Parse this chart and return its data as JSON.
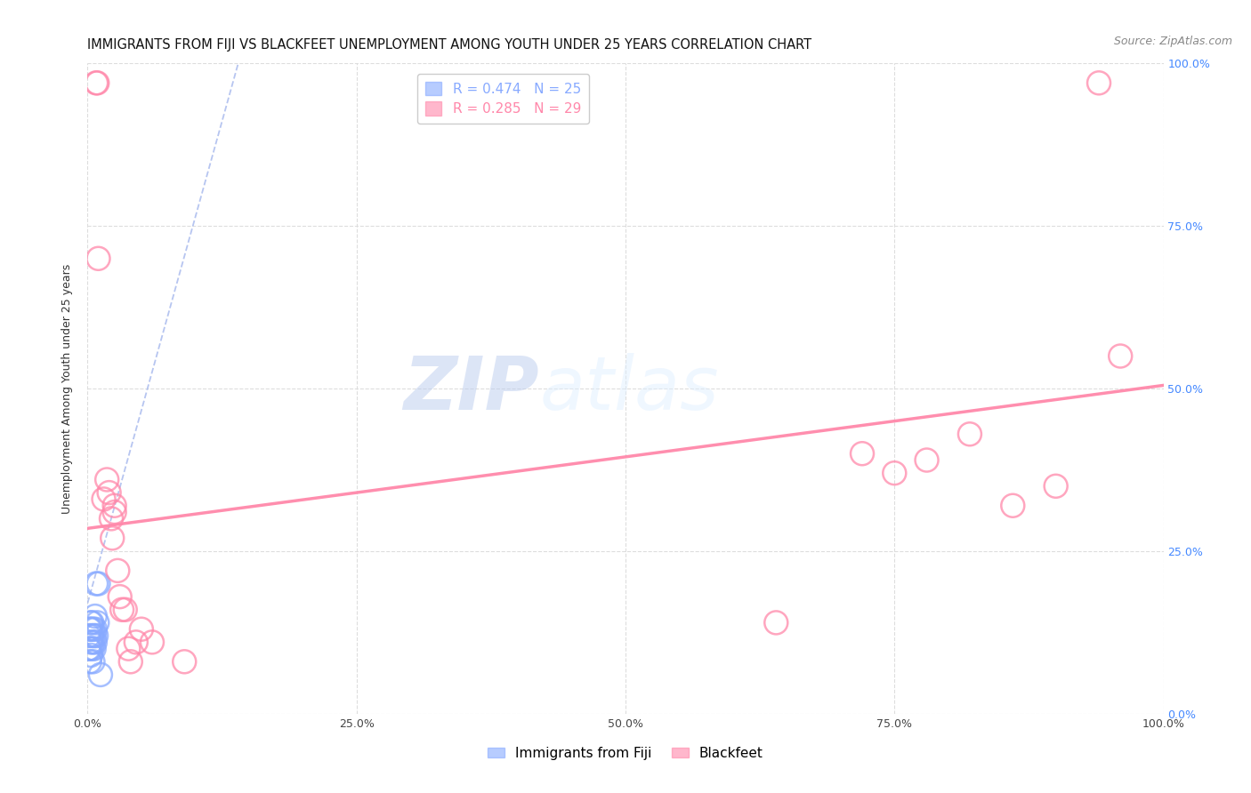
{
  "title": "IMMIGRANTS FROM FIJI VS BLACKFEET UNEMPLOYMENT AMONG YOUTH UNDER 25 YEARS CORRELATION CHART",
  "source": "Source: ZipAtlas.com",
  "ylabel": "Unemployment Among Youth under 25 years",
  "xlim": [
    0,
    1.0
  ],
  "ylim": [
    0,
    1.0
  ],
  "xtick_vals": [
    0,
    0.25,
    0.5,
    0.75,
    1.0
  ],
  "ytick_vals": [
    0,
    0.25,
    0.5,
    0.75,
    1.0
  ],
  "grid_color": "#dddddd",
  "fiji_color": "#88aaff",
  "blackfeet_color": "#ff88aa",
  "fiji_R": 0.474,
  "fiji_N": 25,
  "blackfeet_R": 0.285,
  "blackfeet_N": 29,
  "fiji_legend_label": "Immigrants from Fiji",
  "blackfeet_legend_label": "Blackfeet",
  "watermark_zip": "ZIP",
  "watermark_atlas": "atlas",
  "fiji_points": [
    [
      0.001,
      0.1
    ],
    [
      0.001,
      0.12
    ],
    [
      0.002,
      0.08
    ],
    [
      0.002,
      0.1
    ],
    [
      0.002,
      0.13
    ],
    [
      0.003,
      0.09
    ],
    [
      0.003,
      0.11
    ],
    [
      0.003,
      0.13
    ],
    [
      0.003,
      0.14
    ],
    [
      0.004,
      0.1
    ],
    [
      0.004,
      0.12
    ],
    [
      0.004,
      0.14
    ],
    [
      0.005,
      0.08
    ],
    [
      0.005,
      0.11
    ],
    [
      0.005,
      0.13
    ],
    [
      0.006,
      0.1
    ],
    [
      0.006,
      0.12
    ],
    [
      0.007,
      0.11
    ],
    [
      0.007,
      0.13
    ],
    [
      0.007,
      0.15
    ],
    [
      0.008,
      0.12
    ],
    [
      0.008,
      0.2
    ],
    [
      0.009,
      0.14
    ],
    [
      0.01,
      0.2
    ],
    [
      0.012,
      0.06
    ]
  ],
  "blackfeet_points": [
    [
      0.008,
      0.97
    ],
    [
      0.009,
      0.97
    ],
    [
      0.01,
      0.7
    ],
    [
      0.015,
      0.33
    ],
    [
      0.018,
      0.36
    ],
    [
      0.02,
      0.34
    ],
    [
      0.022,
      0.3
    ],
    [
      0.023,
      0.27
    ],
    [
      0.025,
      0.31
    ],
    [
      0.025,
      0.32
    ],
    [
      0.028,
      0.22
    ],
    [
      0.03,
      0.18
    ],
    [
      0.032,
      0.16
    ],
    [
      0.035,
      0.16
    ],
    [
      0.038,
      0.1
    ],
    [
      0.04,
      0.08
    ],
    [
      0.045,
      0.11
    ],
    [
      0.05,
      0.13
    ],
    [
      0.06,
      0.11
    ],
    [
      0.09,
      0.08
    ],
    [
      0.64,
      0.14
    ],
    [
      0.72,
      0.4
    ],
    [
      0.75,
      0.37
    ],
    [
      0.78,
      0.39
    ],
    [
      0.82,
      0.43
    ],
    [
      0.86,
      0.32
    ],
    [
      0.9,
      0.35
    ],
    [
      0.94,
      0.97
    ],
    [
      0.96,
      0.55
    ]
  ],
  "blackfeet_trend_y0": 0.285,
  "blackfeet_trend_y1": 0.505,
  "title_fontsize": 10.5,
  "source_fontsize": 9,
  "axis_label_fontsize": 9,
  "tick_fontsize": 9,
  "legend_fontsize": 11,
  "right_tick_color": "#4488ff"
}
